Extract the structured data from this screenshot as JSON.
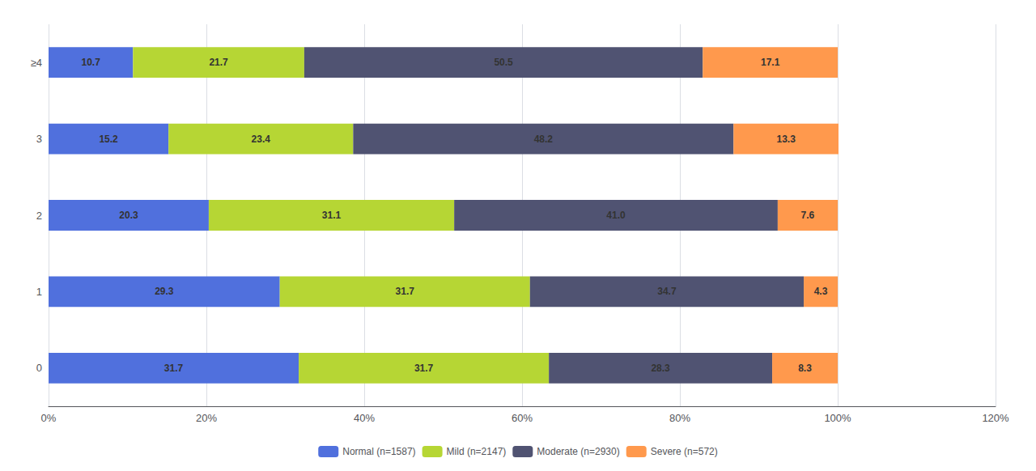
{
  "chart_data": {
    "type": "bar",
    "orientation": "horizontal",
    "stacked": true,
    "data_labels": true,
    "grid": true,
    "legend": "bottom",
    "categories": [
      "0",
      "1",
      "2",
      "3",
      "≥4"
    ],
    "series": [
      {
        "name": "Normal (n=1587)",
        "values": [
          31.7,
          29.3,
          20.3,
          15.2,
          10.7
        ]
      },
      {
        "name": "Mild (n=2147)",
        "values": [
          31.7,
          31.7,
          31.1,
          23.4,
          21.7
        ]
      },
      {
        "name": "Moderate (n=2930)",
        "values": [
          28.3,
          34.7,
          41.0,
          48.2,
          50.5
        ],
        "value_labels": [
          "28.3",
          "34.7",
          "41.0",
          "48.2",
          "50.5"
        ]
      },
      {
        "name": "Severe (n=572)",
        "values": [
          8.3,
          4.3,
          7.6,
          13.3,
          17.1
        ]
      }
    ],
    "xlim": [
      0,
      120
    ],
    "xticks": [
      {
        "value": 0,
        "label": "0%"
      },
      {
        "value": 20,
        "label": "20%"
      },
      {
        "value": 40,
        "label": "40%"
      },
      {
        "value": 60,
        "label": "60%"
      },
      {
        "value": 80,
        "label": "80%"
      },
      {
        "value": 100,
        "label": "100%"
      },
      {
        "value": 120,
        "label": "120%"
      }
    ]
  }
}
